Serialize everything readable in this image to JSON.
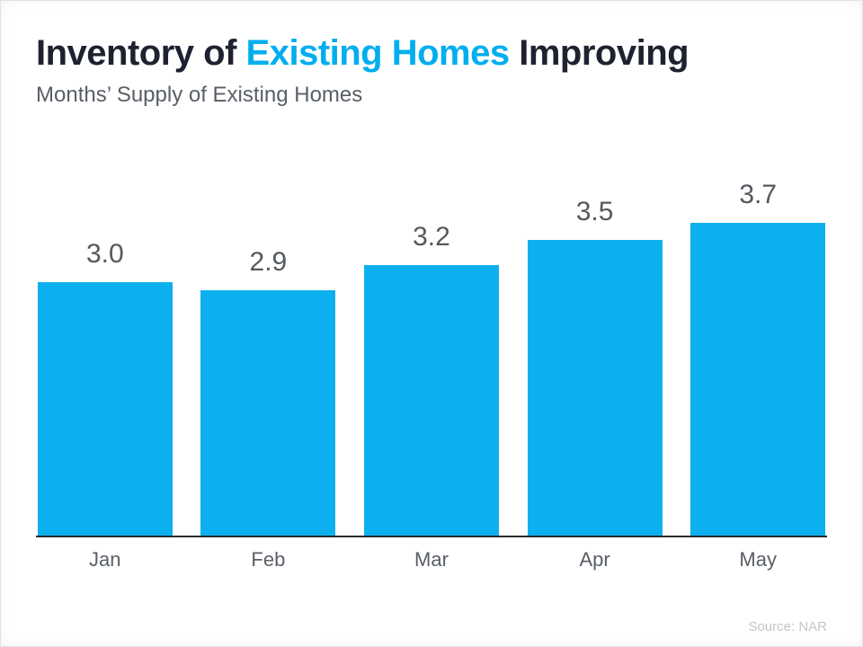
{
  "header": {
    "title_prefix": "Inventory of ",
    "title_highlight": "Existing Homes",
    "title_suffix": " Improving",
    "subtitle": "Months’ Supply of Existing Homes"
  },
  "footer": {
    "source": "Source: NAR"
  },
  "colors": {
    "bar": "#0db0ef",
    "title_dark": "#1e2230",
    "title_highlight": "#00AEEF",
    "label_gray": "#595f66",
    "axis": "#2b2b2b",
    "source_gray": "#c3c6c9"
  },
  "chart_data": {
    "type": "bar",
    "title": "Inventory of Existing Homes Improving",
    "subtitle": "Months' Supply of Existing Homes",
    "categories": [
      "Jan",
      "Feb",
      "Mar",
      "Apr",
      "May"
    ],
    "values": [
      3.0,
      2.9,
      3.2,
      3.5,
      3.7
    ],
    "value_labels": [
      "3.0",
      "2.9",
      "3.2",
      "3.5",
      "3.7"
    ],
    "xlabel": "",
    "ylabel": "",
    "ylim": [
      0,
      4.3
    ],
    "grid": false,
    "legend": false,
    "source": "Source: NAR"
  }
}
